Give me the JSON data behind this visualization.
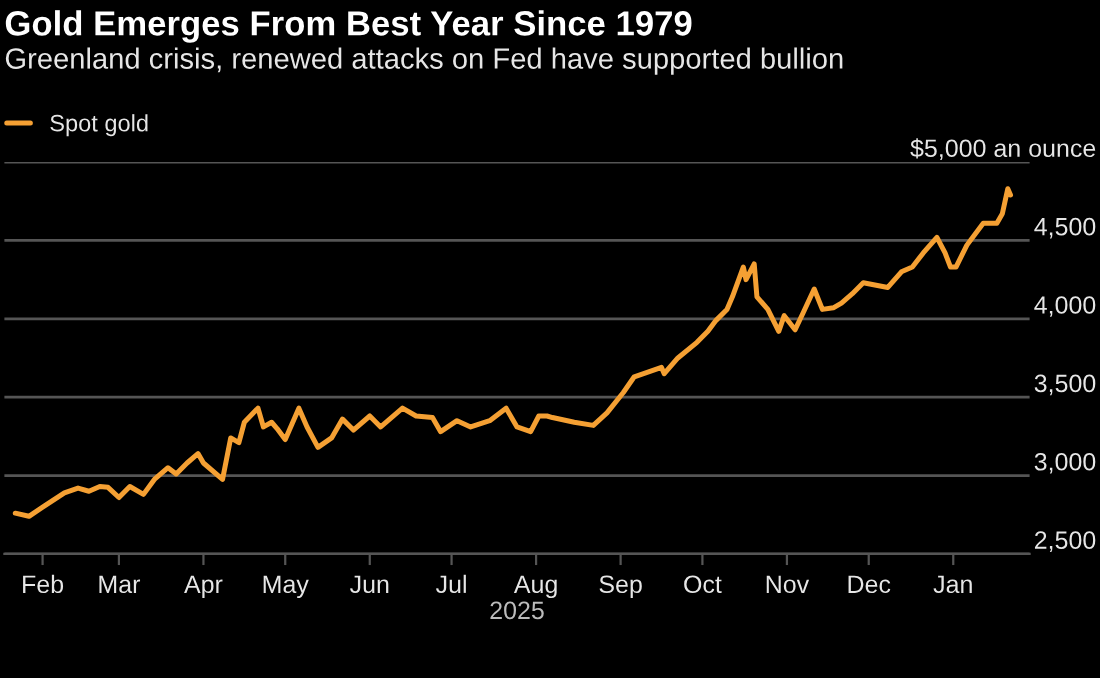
{
  "chart_data": {
    "type": "line",
    "title": "Gold Emerges From Best Year Since 1979",
    "subtitle": "Greenland crisis, renewed attacks on Fed have supported bullion",
    "xlabel": "2025",
    "xlim": [
      "2025-01-18",
      "2026-01-29"
    ],
    "ylim": [
      2500,
      5000
    ],
    "xticks": [
      {
        "value": "2025-02-01",
        "label": "Feb"
      },
      {
        "value": "2025-03-01",
        "label": "Mar"
      },
      {
        "value": "2025-04-01",
        "label": "Apr"
      },
      {
        "value": "2025-05-01",
        "label": "May"
      },
      {
        "value": "2025-06-01",
        "label": "Jun"
      },
      {
        "value": "2025-07-01",
        "label": "Jul"
      },
      {
        "value": "2025-08-01",
        "label": "Aug"
      },
      {
        "value": "2025-09-01",
        "label": "Sep"
      },
      {
        "value": "2025-10-01",
        "label": "Oct"
      },
      {
        "value": "2025-11-01",
        "label": "Nov"
      },
      {
        "value": "2025-12-01",
        "label": "Dec"
      },
      {
        "value": "2026-01-01",
        "label": "Jan"
      }
    ],
    "yticks": [
      {
        "value": 2500,
        "label": "2,500"
      },
      {
        "value": 3000,
        "label": "3,000"
      },
      {
        "value": 3500,
        "label": "3,500"
      },
      {
        "value": 4000,
        "label": "4,000"
      },
      {
        "value": 4500,
        "label": "4,500"
      },
      {
        "value": 5000,
        "label": "$5,000 an ounce"
      }
    ],
    "grid": "y",
    "legend": "top left",
    "series": [
      {
        "name": "Spot gold",
        "color": "#f5a033",
        "x": [
          "2025-01-22",
          "2025-01-27",
          "2025-02-02",
          "2025-02-09",
          "2025-02-14",
          "2025-02-18",
          "2025-02-22",
          "2025-02-25",
          "2025-03-01",
          "2025-03-05",
          "2025-03-10",
          "2025-03-14",
          "2025-03-19",
          "2025-03-22",
          "2025-03-26",
          "2025-03-30",
          "2025-04-01",
          "2025-04-08",
          "2025-04-11",
          "2025-04-14",
          "2025-04-16",
          "2025-04-21",
          "2025-04-23",
          "2025-04-26",
          "2025-04-28",
          "2025-05-01",
          "2025-05-06",
          "2025-05-09",
          "2025-05-13",
          "2025-05-18",
          "2025-05-22",
          "2025-05-26",
          "2025-06-01",
          "2025-06-05",
          "2025-06-13",
          "2025-06-18",
          "2025-06-24",
          "2025-06-27",
          "2025-07-03",
          "2025-07-08",
          "2025-07-15",
          "2025-07-21",
          "2025-07-25",
          "2025-07-30",
          "2025-08-02",
          "2025-08-05",
          "2025-08-07",
          "2025-08-15",
          "2025-08-22",
          "2025-08-27",
          "2025-09-02",
          "2025-09-06",
          "2025-09-16",
          "2025-09-17",
          "2025-09-22",
          "2025-09-29",
          "2025-10-03",
          "2025-10-06",
          "2025-10-10",
          "2025-10-12",
          "2025-10-16",
          "2025-10-17",
          "2025-10-20",
          "2025-10-21",
          "2025-10-25",
          "2025-10-29",
          "2025-10-31",
          "2025-11-04",
          "2025-11-07",
          "2025-11-11",
          "2025-11-14",
          "2025-11-18",
          "2025-11-21",
          "2025-11-25",
          "2025-11-29",
          "2025-12-08",
          "2025-12-13",
          "2025-12-17",
          "2025-12-21",
          "2025-12-26",
          "2025-12-29",
          "2025-12-31",
          "2026-01-02",
          "2026-01-06",
          "2026-01-12",
          "2026-01-17",
          "2026-01-19",
          "2026-01-21",
          "2026-01-22"
        ],
        "values": [
          2760,
          2740,
          2810,
          2890,
          2920,
          2900,
          2930,
          2925,
          2860,
          2930,
          2880,
          2975,
          3050,
          3010,
          3080,
          3140,
          3080,
          2975,
          3240,
          3210,
          3340,
          3430,
          3310,
          3340,
          3300,
          3230,
          3430,
          3310,
          3180,
          3240,
          3360,
          3290,
          3380,
          3310,
          3430,
          3380,
          3370,
          3280,
          3350,
          3310,
          3350,
          3430,
          3310,
          3280,
          3380,
          3380,
          3370,
          3340,
          3320,
          3400,
          3530,
          3630,
          3690,
          3650,
          3750,
          3850,
          3920,
          3990,
          4060,
          4140,
          4330,
          4250,
          4350,
          4140,
          4060,
          3920,
          4020,
          3930,
          4040,
          4190,
          4060,
          4070,
          4100,
          4160,
          4230,
          4200,
          4300,
          4330,
          4420,
          4520,
          4420,
          4330,
          4330,
          4470,
          4610,
          4610,
          4670,
          4830,
          4790
        ]
      }
    ]
  }
}
